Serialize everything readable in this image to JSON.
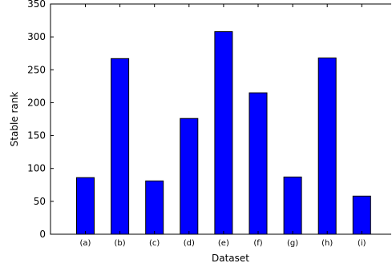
{
  "chart_data": {
    "type": "bar",
    "categories": [
      "(a)",
      "(b)",
      "(c)",
      "(d)",
      "(e)",
      "(f)",
      "(g)",
      "(h)",
      "(i)"
    ],
    "values": [
      86,
      267,
      81,
      176,
      308,
      215,
      87,
      268,
      58
    ],
    "xlabel": "Dataset",
    "ylabel": "Stable rank",
    "ylim": [
      0,
      350
    ],
    "yticks": [
      0,
      50,
      100,
      150,
      200,
      250,
      300,
      350
    ],
    "grid": false,
    "colors": {
      "bar_fill": "#0000ff",
      "bar_edge": "#000000"
    }
  }
}
